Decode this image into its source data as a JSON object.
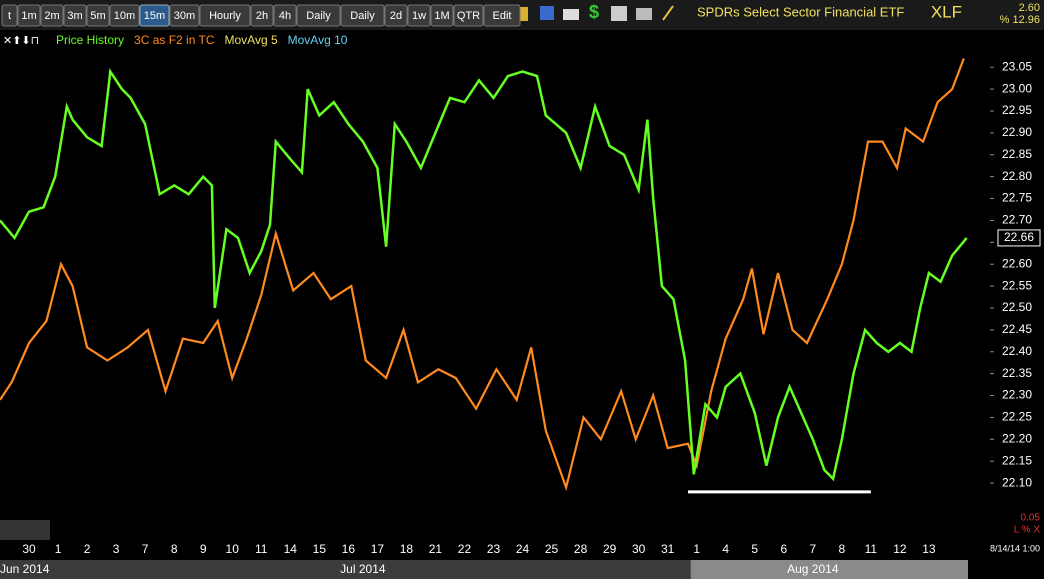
{
  "chart_data": {
    "type": "line",
    "toolbar": [
      "t",
      "1m",
      "2m",
      "3m",
      "5m",
      "10m",
      "15m",
      "30m",
      "Hourly",
      "2h",
      "4h",
      "Daily",
      "Daily",
      "2d",
      "1w",
      "1M",
      "QTR",
      "Edit"
    ],
    "selected_button": "15m",
    "title": "SPDRs Select Sector Financial ETF",
    "ticker": "XLF",
    "change": "2.60",
    "change_pct": "% 12.96",
    "indicators": [
      {
        "name": "MovAvg 5",
        "color": "#f0e060"
      },
      {
        "name": "MovAvg 10",
        "color": "#60d0f0"
      }
    ],
    "last_price_label": "22.66",
    "bottom_value": "0.05",
    "bottom_flags": "L % X",
    "timestamp": "8/14/14 1:00",
    "categories": [
      "30",
      "1",
      "2",
      "3",
      "7",
      "8",
      "9",
      "10",
      "11",
      "14",
      "15",
      "16",
      "17",
      "18",
      "21",
      "22",
      "23",
      "24",
      "25",
      "28",
      "29",
      "30",
      "31",
      "1",
      "4",
      "5",
      "6",
      "7",
      "8",
      "11",
      "12",
      "13"
    ],
    "months": [
      "Jun 2014",
      "Jul 2014",
      "Aug 2014"
    ],
    "xlim": [
      0,
      34
    ],
    "ylim": [
      21.97,
      23.135
    ],
    "yticks": [
      {
        "value": 22.1,
        "label": "22.10"
      },
      {
        "value": 22.15,
        "label": "22.15"
      },
      {
        "value": 22.2,
        "label": "22.20"
      },
      {
        "value": 22.25,
        "label": "22.25"
      },
      {
        "value": 22.3,
        "label": "22.30"
      },
      {
        "value": 22.35,
        "label": "22.35"
      },
      {
        "value": 22.4,
        "label": "22.40"
      },
      {
        "value": 22.45,
        "label": "22.45"
      },
      {
        "value": 22.5,
        "label": "22.50"
      },
      {
        "value": 22.55,
        "label": "22.55"
      },
      {
        "value": 22.6,
        "label": "22.60"
      },
      {
        "value": 22.65,
        "label": "22.65"
      },
      {
        "value": 22.7,
        "label": "22.70"
      },
      {
        "value": 22.75,
        "label": "22.75"
      },
      {
        "value": 22.8,
        "label": "22.80"
      },
      {
        "value": 22.85,
        "label": "22.85"
      },
      {
        "value": 22.9,
        "label": "22.90"
      },
      {
        "value": 22.95,
        "label": "22.95"
      },
      {
        "value": 23.0,
        "label": "23.00"
      },
      {
        "value": 23.05,
        "label": "23.05"
      }
    ],
    "series": [
      {
        "name": "Price History",
        "color": "#66ff22",
        "x": [
          0,
          0.5,
          1,
          1.5,
          1.9,
          2.3,
          2.5,
          3,
          3.5,
          3.8,
          4.2,
          4.5,
          5,
          5.5,
          6,
          6.5,
          7,
          7.3,
          7.4,
          7.8,
          8.2,
          8.6,
          9,
          9.3,
          9.5,
          10,
          10.4,
          10.6,
          11,
          11.5,
          12,
          12.5,
          13,
          13.3,
          13.6,
          14,
          14.5,
          15,
          15.5,
          16,
          16.5,
          17,
          17.5,
          18,
          18.5,
          18.8,
          19.5,
          20,
          20.5,
          21,
          21.5,
          22,
          22.3,
          22.5,
          22.8,
          23.2,
          23.6,
          23.9,
          24.3,
          24.7,
          25,
          25.5,
          26,
          26.4,
          26.8,
          27.2,
          27.6,
          28,
          28.4,
          28.7,
          29,
          29.4,
          29.8,
          30.2,
          30.6,
          31,
          31.4,
          31.7,
          32,
          32.4,
          32.8,
          33.3
        ],
        "values": [
          22.7,
          22.66,
          22.72,
          22.73,
          22.8,
          22.96,
          22.93,
          22.89,
          22.87,
          23.04,
          23.0,
          22.98,
          22.92,
          22.76,
          22.78,
          22.76,
          22.8,
          22.78,
          22.5,
          22.68,
          22.66,
          22.58,
          22.63,
          22.69,
          22.88,
          22.84,
          22.81,
          23.0,
          22.94,
          22.97,
          22.92,
          22.88,
          22.82,
          22.64,
          22.92,
          22.88,
          22.82,
          22.9,
          22.98,
          22.97,
          23.02,
          22.98,
          23.03,
          23.04,
          23.03,
          22.94,
          22.9,
          22.82,
          22.96,
          22.87,
          22.85,
          22.77,
          22.93,
          22.75,
          22.55,
          22.52,
          22.38,
          22.12,
          22.28,
          22.25,
          22.32,
          22.35,
          22.26,
          22.14,
          22.25,
          22.32,
          22.26,
          22.2,
          22.13,
          22.11,
          22.2,
          22.35,
          22.45,
          22.42,
          22.4,
          22.42,
          22.4,
          22.5,
          22.58,
          22.56,
          22.62,
          22.66
        ]
      },
      {
        "name": "3C as F2 in TC",
        "color": "#ff8a1e",
        "x": [
          0,
          0.4,
          1,
          1.6,
          2.1,
          2.5,
          3,
          3.7,
          4.4,
          5.1,
          5.7,
          6.3,
          7,
          7.5,
          8,
          8.5,
          9,
          9.5,
          10.1,
          10.8,
          11.4,
          12.1,
          12.6,
          13.3,
          13.9,
          14.4,
          15.1,
          15.7,
          16.4,
          17.1,
          17.8,
          18.3,
          18.8,
          19.5,
          20.1,
          20.7,
          21.4,
          21.9,
          22.5,
          23,
          23.7,
          24,
          24.5,
          25,
          25.6,
          25.9,
          26.3,
          26.8,
          27.3,
          27.8,
          28.5,
          29,
          29.4,
          29.9,
          30.4,
          30.9,
          31.2,
          31.8,
          32.3,
          32.8,
          33.2
        ],
        "values": [
          22.29,
          22.33,
          22.42,
          22.47,
          22.6,
          22.55,
          22.41,
          22.38,
          22.41,
          22.45,
          22.31,
          22.43,
          22.42,
          22.47,
          22.34,
          22.43,
          22.53,
          22.67,
          22.54,
          22.58,
          22.52,
          22.55,
          22.38,
          22.34,
          22.45,
          22.33,
          22.36,
          22.34,
          22.27,
          22.36,
          22.29,
          22.41,
          22.22,
          22.09,
          22.25,
          22.2,
          22.31,
          22.2,
          22.3,
          22.18,
          22.19,
          22.14,
          22.31,
          22.43,
          22.52,
          22.59,
          22.44,
          22.58,
          22.45,
          22.42,
          22.52,
          22.6,
          22.7,
          22.88,
          22.88,
          22.82,
          22.91,
          22.88,
          22.97,
          23.0,
          23.07
        ]
      }
    ],
    "support_line": {
      "value": 22.08,
      "x": [
        23.7,
        30
      ],
      "color": "#ffffff"
    }
  }
}
